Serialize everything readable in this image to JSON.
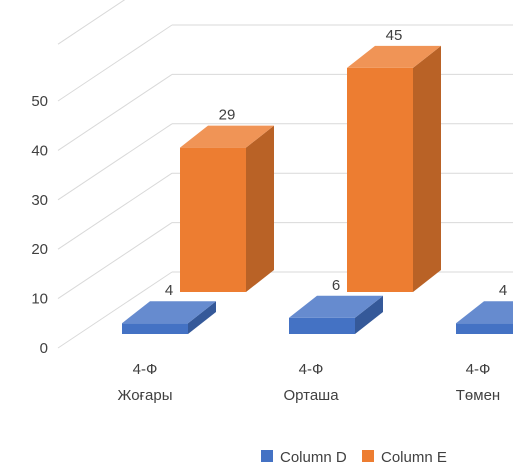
{
  "chart_data": {
    "type": "bar",
    "categories": [
      "4-Ф Жоғары",
      "4-Ф Орташа",
      "4-Ф Төмен"
    ],
    "category_lines": [
      [
        "4-Ф",
        "Жоғары"
      ],
      [
        "4-Ф",
        "Орташа"
      ],
      [
        "4-Ф",
        "Төмен"
      ]
    ],
    "series": [
      {
        "name": "Column D",
        "values": [
          4,
          6,
          4
        ],
        "color": "#4472c4"
      },
      {
        "name": "Column E",
        "values": [
          29,
          45,
          null
        ],
        "color": "#ed7d31"
      }
    ],
    "yticks": [
      0,
      10,
      20,
      30,
      40,
      50
    ],
    "ylim": [
      0,
      50
    ],
    "grid": true,
    "legend_position": "bottom",
    "style": "3d-clustered-column"
  }
}
